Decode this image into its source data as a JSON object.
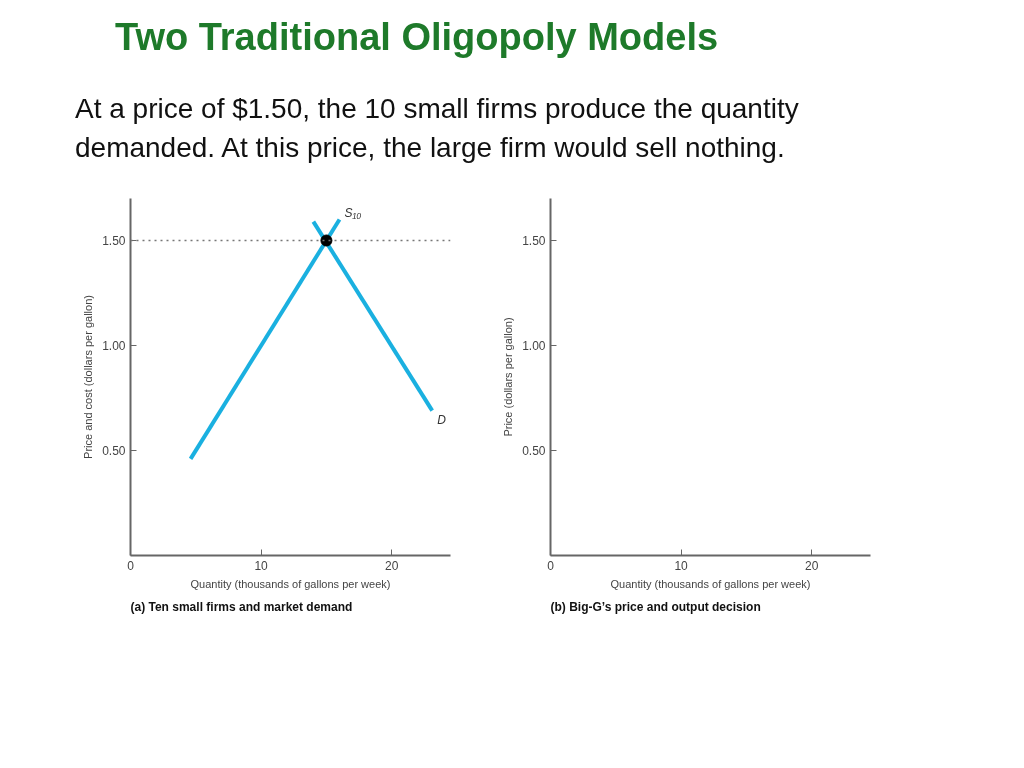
{
  "chart_data": [
    {
      "type": "line",
      "title": "Two Traditional Oligopoly Models",
      "subtitle": "At a price of $1.50, the 10 small firms produce the quantity demanded. At this price, the large firm would sell nothing.",
      "xlabel": "Quantity (thousands of gallons per week)",
      "ylabel": "Price and cost (dollars per gallon)",
      "annotations": [
        "(a) Ten small firms and market demand"
      ],
      "xlim": [
        0,
        24.5
      ],
      "ylim": [
        0,
        1.7
      ],
      "xticks": [
        0,
        10,
        20
      ],
      "yticks": [
        {
          "value": 0.5,
          "label": "0.50"
        },
        {
          "value": 1,
          "label": "1.00"
        },
        {
          "value": 1.5,
          "label": "1.50"
        }
      ],
      "grid": false,
      "marker": "none",
      "line_style": "solid",
      "ref_lines": [
        {
          "axis": "y",
          "value": 1.5,
          "label": null,
          "color": "#777777",
          "line_style": "dotted"
        }
      ],
      "series": [
        {
          "name": "S₁₀",
          "color": "#1ab0e0",
          "x": [
            4.6,
            16.0
          ],
          "values": [
            0.46,
            1.6
          ]
        },
        {
          "name": "D",
          "color": "#1ab0e0",
          "x": [
            14.0,
            23.1
          ],
          "values": [
            1.59,
            0.69
          ]
        },
        {
          "type": "scatter",
          "marker": "circle",
          "color": "#000000",
          "x": [
            15
          ],
          "values": [
            1.5
          ]
        }
      ]
    },
    {
      "type": "line",
      "xlabel": "Quantity (thousands of gallons per week)",
      "ylabel": "Price (dollars per gallon)",
      "annotations": [
        "(b) Big-G’s price and output decision"
      ],
      "xlim": [
        0,
        24.5
      ],
      "ylim": [
        0,
        1.7
      ],
      "xticks": [
        0,
        10,
        20
      ],
      "yticks": [
        {
          "value": 0.5,
          "label": "0.50"
        },
        {
          "value": 1,
          "label": "1.00"
        },
        {
          "value": 1.5,
          "label": "1.50"
        }
      ],
      "grid": false
    }
  ]
}
